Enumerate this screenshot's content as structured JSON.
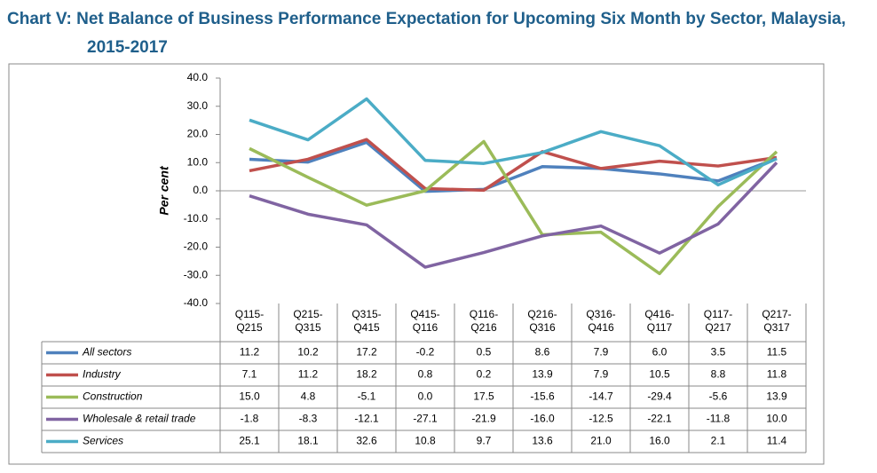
{
  "chart_data": {
    "type": "line",
    "title": "Chart V: Net Balance of Business Performance Expectation for Upcoming Six Month by Sector, Malaysia, 2015-2017",
    "y_label": "Per cent",
    "categories": [
      "Q115-Q215",
      "Q215-Q315",
      "Q315-Q415",
      "Q415-Q116",
      "Q116-Q216",
      "Q216-Q316",
      "Q316-Q416",
      "Q416-Q117",
      "Q117-Q217",
      "Q217-Q317"
    ],
    "ylim": [
      -40,
      40
    ],
    "yticks": [
      {
        "value": -40,
        "label": "-40.0"
      },
      {
        "value": -30,
        "label": "-30.0"
      },
      {
        "value": -20,
        "label": "-20.0"
      },
      {
        "value": -10,
        "label": "-10.0"
      },
      {
        "value": 0,
        "label": "0.0"
      },
      {
        "value": 10,
        "label": "10.0"
      },
      {
        "value": 20,
        "label": "20.0"
      },
      {
        "value": 30,
        "label": "30.0"
      },
      {
        "value": 40,
        "label": "40.0"
      }
    ],
    "series": [
      {
        "name": "All sectors",
        "color": "#4f81bd",
        "values": [
          11.2,
          10.2,
          17.2,
          -0.2,
          0.5,
          8.6,
          7.9,
          6.0,
          3.5,
          11.5
        ],
        "value_labels": [
          "11.2",
          "10.2",
          "17.2",
          "-0.2",
          "0.5",
          "8.6",
          "7.9",
          "6.0",
          "3.5",
          "11.5"
        ]
      },
      {
        "name": "Industry",
        "color": "#c0504d",
        "values": [
          7.1,
          11.2,
          18.2,
          0.8,
          0.2,
          13.9,
          7.9,
          10.5,
          8.8,
          11.8
        ],
        "value_labels": [
          "7.1",
          "11.2",
          "18.2",
          "0.8",
          "0.2",
          "13.9",
          "7.9",
          "10.5",
          "8.8",
          "11.8"
        ]
      },
      {
        "name": "Construction",
        "color": "#9bbb59",
        "values": [
          15.0,
          4.8,
          -5.1,
          0.0,
          17.5,
          -15.6,
          -14.7,
          -29.4,
          -5.6,
          13.9
        ],
        "value_labels": [
          "15.0",
          "4.8",
          "-5.1",
          "0.0",
          "17.5",
          "-15.6",
          "-14.7",
          "-29.4",
          "-5.6",
          "13.9"
        ]
      },
      {
        "name": "Wholesale & retail trade",
        "color": "#8064a2",
        "values": [
          -1.8,
          -8.3,
          -12.1,
          -27.1,
          -21.9,
          -16.0,
          -12.5,
          -22.1,
          -11.8,
          10.0
        ],
        "value_labels": [
          "-1.8",
          "-8.3",
          "-12.1",
          "-27.1",
          "-21.9",
          "-16.0",
          "-12.5",
          "-22.1",
          "-11.8",
          "10.0"
        ]
      },
      {
        "name": "Services",
        "color": "#4bacc6",
        "values": [
          25.1,
          18.1,
          32.6,
          10.8,
          9.7,
          13.6,
          21.0,
          16.0,
          2.1,
          11.4
        ],
        "value_labels": [
          "25.1",
          "18.1",
          "32.6",
          "10.8",
          "9.7",
          "13.6",
          "21.0",
          "16.0",
          "2.1",
          "11.4"
        ]
      }
    ]
  }
}
